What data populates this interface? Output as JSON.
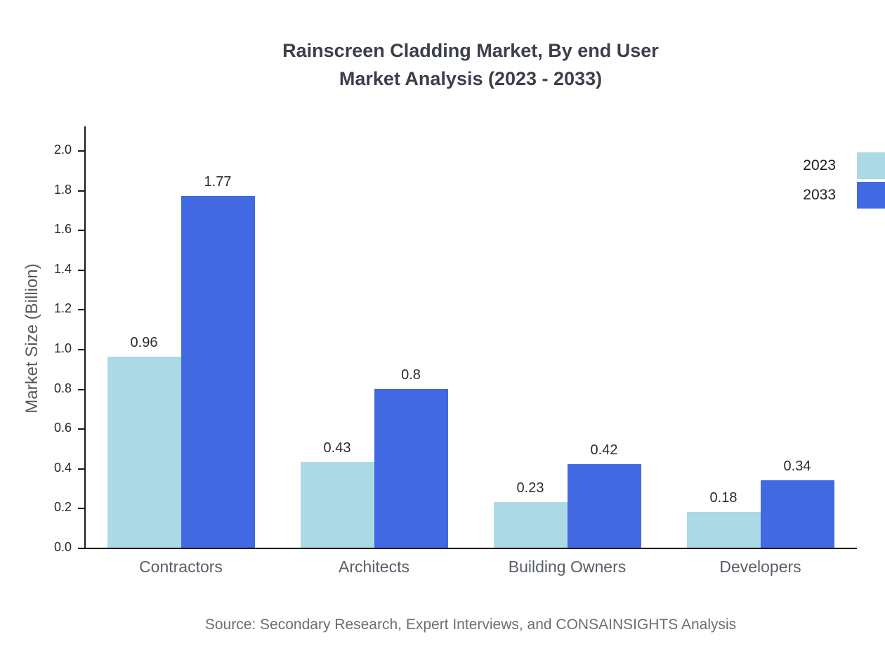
{
  "title": {
    "line1": "Rainscreen Cladding Market, By end User",
    "line2": "Market Analysis (2023 - 2033)"
  },
  "source": "Source: Secondary Research, Expert Interviews, and CONSAINSIGHTS Analysis",
  "chart_data": {
    "type": "bar",
    "title": "Rainscreen Cladding Market, By end User Market Analysis (2023 - 2033)",
    "categories": [
      "Contractors",
      "Architects",
      "Building Owners",
      "Developers"
    ],
    "series": [
      {
        "name": "2023",
        "color": "#ADD8E6",
        "values": [
          0.96,
          0.43,
          0.23,
          0.18
        ]
      },
      {
        "name": "2033",
        "color": "#4169E1",
        "values": [
          1.77,
          0.8,
          0.42,
          0.34
        ]
      }
    ],
    "xlabel": "",
    "ylabel": "Market Size (Billion)",
    "ylim": [
      0,
      2.1
    ],
    "yticks": [
      0.0,
      0.2,
      0.4,
      0.6,
      0.8,
      1.0,
      1.2,
      1.4,
      1.6,
      1.8,
      2.0
    ],
    "grid": false,
    "legend_position": "top-right"
  }
}
